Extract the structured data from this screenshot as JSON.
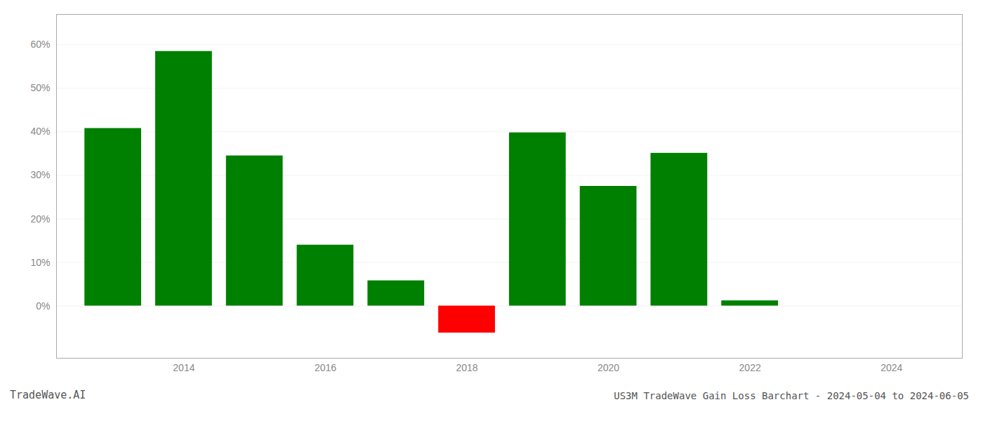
{
  "chart_data": {
    "type": "bar",
    "title": "US3M TradeWave Gain Loss Barchart - 2024-05-04 to 2024-06-05",
    "annotations": [
      "TradeWave.AI"
    ],
    "x": [
      2013,
      2014,
      2015,
      2016,
      2017,
      2018,
      2019,
      2020,
      2021,
      2022,
      2023
    ],
    "values": [
      0.408,
      0.585,
      0.345,
      0.14,
      0.058,
      -0.062,
      0.398,
      0.275,
      0.351,
      0.012,
      0.0
    ],
    "colors": [
      "#008000",
      "#008000",
      "#008000",
      "#008000",
      "#008000",
      "#ff0000",
      "#008000",
      "#008000",
      "#008000",
      "#008000",
      "#008000"
    ],
    "xlim": [
      2012.2,
      2025.0
    ],
    "xticks": [
      2014,
      2016,
      2018,
      2020,
      2022,
      2024
    ],
    "ylim": [
      -0.12,
      0.67
    ],
    "yticks": [
      {
        "value": 0.0,
        "label": "0%"
      },
      {
        "value": 0.1,
        "label": "10%"
      },
      {
        "value": 0.2,
        "label": "20%"
      },
      {
        "value": 0.3,
        "label": "30%"
      },
      {
        "value": 0.4,
        "label": "40%"
      },
      {
        "value": 0.5,
        "label": "50%"
      },
      {
        "value": 0.6,
        "label": "60%"
      }
    ],
    "grid": true
  }
}
